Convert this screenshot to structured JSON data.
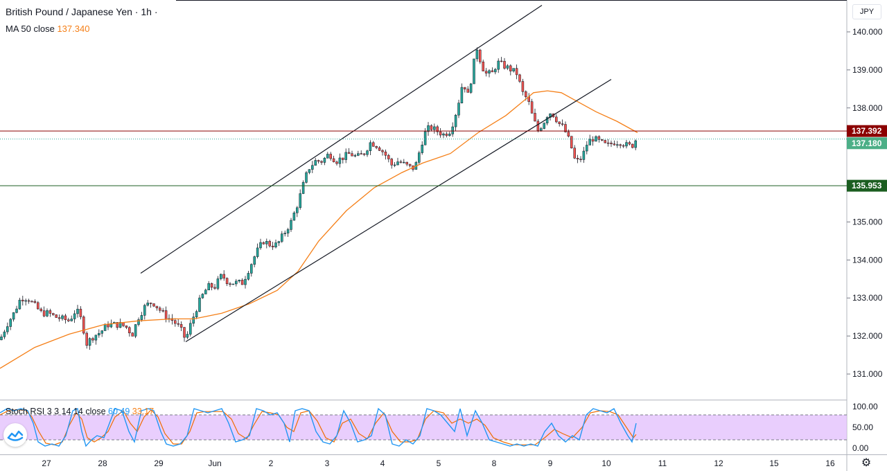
{
  "header": {
    "symbol_title": "British Pound / Japanese Yen · 1h ·",
    "ma_label": "MA 50 close",
    "ma_value": "137.340",
    "currency": "JPY"
  },
  "oscillator": {
    "label": "Stoch RSI 3 3 14 14 close",
    "k_value": "60.49",
    "d_value": "33.17"
  },
  "colors": {
    "up": "#26a69a",
    "down": "#ef5350",
    "ma": "#f57f17",
    "k": "#2196f3",
    "d": "#ef6c00",
    "resistance": "#8b0000",
    "support": "#1b5e20",
    "last_price": "#4caf87",
    "band": "#e1bdfc"
  },
  "chart_data": {
    "type": "candlestick",
    "price_axis": {
      "ticks": [
        "140.000",
        "139.000",
        "138.000",
        "137.000",
        "136.000",
        "135.000",
        "134.000",
        "133.000",
        "132.000",
        "131.000"
      ],
      "ylim": [
        130.3,
        140.7
      ]
    },
    "osc_axis": {
      "ticks": [
        "100.00",
        "50.00",
        "0.00"
      ],
      "ylim": [
        0,
        100
      ],
      "band": [
        20,
        80
      ]
    },
    "time_axis": {
      "labels": [
        "27",
        "28",
        "29",
        "Jun",
        "2",
        "3",
        "4",
        "5",
        "8",
        "9",
        "10",
        "11",
        "12",
        "15",
        "16"
      ]
    },
    "price_labels": {
      "resistance": "137.392",
      "last_price": "137.180",
      "support": "135.953"
    },
    "resistance_level": 137.392,
    "support_level": 135.953,
    "last_price": 137.18,
    "close_path": [
      [
        0,
        131.9
      ],
      [
        10,
        132.3
      ],
      [
        20,
        132.6
      ],
      [
        30,
        133.0
      ],
      [
        40,
        133.0
      ],
      [
        50,
        132.8
      ],
      [
        60,
        132.6
      ],
      [
        70,
        132.6
      ],
      [
        80,
        132.5
      ],
      [
        100,
        132.4
      ],
      [
        110,
        132.7
      ],
      [
        118,
        132.4
      ],
      [
        125,
        131.8
      ],
      [
        135,
        132.0
      ],
      [
        145,
        132.1
      ],
      [
        155,
        132.3
      ],
      [
        165,
        132.3
      ],
      [
        175,
        132.3
      ],
      [
        185,
        132.2
      ],
      [
        190,
        132.0
      ],
      [
        200,
        132.5
      ],
      [
        210,
        132.8
      ],
      [
        220,
        132.9
      ],
      [
        230,
        132.7
      ],
      [
        240,
        132.5
      ],
      [
        250,
        132.4
      ],
      [
        260,
        132.2
      ],
      [
        268,
        131.9
      ],
      [
        275,
        132.3
      ],
      [
        283,
        132.7
      ],
      [
        290,
        133.0
      ],
      [
        300,
        133.3
      ],
      [
        310,
        133.3
      ],
      [
        320,
        133.6
      ],
      [
        330,
        133.4
      ],
      [
        340,
        133.4
      ],
      [
        350,
        133.4
      ],
      [
        360,
        133.8
      ],
      [
        370,
        134.2
      ],
      [
        380,
        134.5
      ],
      [
        390,
        134.4
      ],
      [
        400,
        134.4
      ],
      [
        410,
        134.7
      ],
      [
        420,
        135.0
      ],
      [
        430,
        135.5
      ],
      [
        438,
        136.0
      ],
      [
        445,
        136.4
      ],
      [
        455,
        136.6
      ],
      [
        465,
        136.6
      ],
      [
        475,
        136.8
      ],
      [
        485,
        136.6
      ],
      [
        495,
        136.7
      ],
      [
        505,
        136.8
      ],
      [
        515,
        136.7
      ],
      [
        525,
        136.8
      ],
      [
        535,
        137.1
      ],
      [
        545,
        137.0
      ],
      [
        555,
        136.8
      ],
      [
        565,
        136.5
      ],
      [
        575,
        136.6
      ],
      [
        585,
        136.5
      ],
      [
        595,
        136.4
      ],
      [
        600,
        136.5
      ],
      [
        606,
        136.9
      ],
      [
        612,
        137.3
      ],
      [
        620,
        137.5
      ],
      [
        630,
        137.4
      ],
      [
        640,
        137.3
      ],
      [
        650,
        137.4
      ],
      [
        660,
        138.0
      ],
      [
        668,
        138.7
      ],
      [
        676,
        138.3
      ],
      [
        682,
        139.0
      ],
      [
        688,
        139.6
      ],
      [
        694,
        139.2
      ],
      [
        700,
        138.9
      ],
      [
        710,
        138.9
      ],
      [
        718,
        139.2
      ],
      [
        728,
        139.1
      ],
      [
        738,
        139.0
      ],
      [
        746,
        138.9
      ],
      [
        754,
        138.4
      ],
      [
        762,
        138.2
      ],
      [
        768,
        137.8
      ],
      [
        776,
        137.4
      ],
      [
        784,
        137.6
      ],
      [
        792,
        137.9
      ],
      [
        800,
        137.8
      ],
      [
        806,
        137.6
      ],
      [
        812,
        137.5
      ],
      [
        818,
        137.3
      ],
      [
        824,
        137.0
      ],
      [
        830,
        136.6
      ],
      [
        836,
        136.6
      ],
      [
        842,
        136.8
      ],
      [
        848,
        137.1
      ],
      [
        856,
        137.2
      ],
      [
        866,
        137.1
      ],
      [
        876,
        137.0
      ],
      [
        886,
        137.1
      ],
      [
        896,
        137.1
      ],
      [
        906,
        137.0
      ],
      [
        912,
        137.0
      ],
      [
        918,
        137.18
      ]
    ],
    "ma_path": [
      [
        0,
        131.15
      ],
      [
        50,
        131.7
      ],
      [
        100,
        132.05
      ],
      [
        150,
        132.3
      ],
      [
        200,
        132.4
      ],
      [
        250,
        132.45
      ],
      [
        280,
        132.45
      ],
      [
        320,
        132.6
      ],
      [
        360,
        132.85
      ],
      [
        400,
        133.2
      ],
      [
        430,
        133.7
      ],
      [
        460,
        134.5
      ],
      [
        500,
        135.3
      ],
      [
        540,
        135.9
      ],
      [
        580,
        136.3
      ],
      [
        610,
        136.55
      ],
      [
        650,
        136.8
      ],
      [
        690,
        137.35
      ],
      [
        730,
        137.8
      ],
      [
        770,
        138.4
      ],
      [
        790,
        138.45
      ],
      [
        810,
        138.4
      ],
      [
        830,
        138.2
      ],
      [
        860,
        137.9
      ],
      [
        890,
        137.65
      ],
      [
        920,
        137.35
      ]
    ],
    "channel_upper": [
      [
        203,
        133.65
      ],
      [
        782,
        140.7
      ]
    ],
    "channel_lower": [
      [
        268,
        131.85
      ],
      [
        882,
        138.75
      ]
    ],
    "stoch_k_path": [
      [
        0,
        85
      ],
      [
        10,
        95
      ],
      [
        20,
        90
      ],
      [
        30,
        95
      ],
      [
        40,
        90
      ],
      [
        48,
        60
      ],
      [
        55,
        15
      ],
      [
        65,
        5
      ],
      [
        75,
        10
      ],
      [
        85,
        5
      ],
      [
        95,
        30
      ],
      [
        105,
        90
      ],
      [
        112,
        95
      ],
      [
        118,
        40
      ],
      [
        124,
        5
      ],
      [
        132,
        20
      ],
      [
        140,
        30
      ],
      [
        150,
        25
      ],
      [
        158,
        60
      ],
      [
        166,
        95
      ],
      [
        176,
        90
      ],
      [
        186,
        40
      ],
      [
        194,
        15
      ],
      [
        204,
        90
      ],
      [
        214,
        95
      ],
      [
        222,
        90
      ],
      [
        232,
        40
      ],
      [
        240,
        10
      ],
      [
        250,
        5
      ],
      [
        260,
        10
      ],
      [
        270,
        30
      ],
      [
        280,
        95
      ],
      [
        290,
        90
      ],
      [
        300,
        85
      ],
      [
        310,
        90
      ],
      [
        320,
        95
      ],
      [
        330,
        60
      ],
      [
        340,
        15
      ],
      [
        350,
        20
      ],
      [
        360,
        30
      ],
      [
        370,
        95
      ],
      [
        380,
        90
      ],
      [
        390,
        80
      ],
      [
        400,
        85
      ],
      [
        410,
        60
      ],
      [
        418,
        15
      ],
      [
        426,
        90
      ],
      [
        436,
        95
      ],
      [
        446,
        90
      ],
      [
        456,
        40
      ],
      [
        466,
        15
      ],
      [
        476,
        10
      ],
      [
        486,
        30
      ],
      [
        496,
        90
      ],
      [
        506,
        60
      ],
      [
        516,
        15
      ],
      [
        526,
        20
      ],
      [
        536,
        30
      ],
      [
        546,
        95
      ],
      [
        556,
        80
      ],
      [
        566,
        10
      ],
      [
        576,
        5
      ],
      [
        586,
        20
      ],
      [
        596,
        10
      ],
      [
        606,
        30
      ],
      [
        616,
        95
      ],
      [
        626,
        90
      ],
      [
        636,
        80
      ],
      [
        646,
        60
      ],
      [
        656,
        40
      ],
      [
        664,
        95
      ],
      [
        674,
        30
      ],
      [
        686,
        90
      ],
      [
        696,
        60
      ],
      [
        706,
        20
      ],
      [
        716,
        15
      ],
      [
        726,
        10
      ],
      [
        736,
        5
      ],
      [
        746,
        10
      ],
      [
        756,
        5
      ],
      [
        766,
        10
      ],
      [
        776,
        5
      ],
      [
        786,
        40
      ],
      [
        796,
        60
      ],
      [
        806,
        30
      ],
      [
        816,
        15
      ],
      [
        826,
        30
      ],
      [
        836,
        20
      ],
      [
        846,
        80
      ],
      [
        856,
        95
      ],
      [
        866,
        90
      ],
      [
        876,
        85
      ],
      [
        886,
        95
      ],
      [
        896,
        60
      ],
      [
        906,
        30
      ],
      [
        912,
        15
      ],
      [
        918,
        60
      ]
    ],
    "stoch_d_path": [
      [
        0,
        80
      ],
      [
        12,
        90
      ],
      [
        24,
        92
      ],
      [
        36,
        92
      ],
      [
        46,
        75
      ],
      [
        56,
        40
      ],
      [
        66,
        12
      ],
      [
        78,
        8
      ],
      [
        90,
        15
      ],
      [
        100,
        55
      ],
      [
        110,
        85
      ],
      [
        118,
        70
      ],
      [
        126,
        25
      ],
      [
        136,
        15
      ],
      [
        146,
        25
      ],
      [
        156,
        40
      ],
      [
        166,
        75
      ],
      [
        178,
        90
      ],
      [
        188,
        60
      ],
      [
        198,
        40
      ],
      [
        208,
        75
      ],
      [
        218,
        92
      ],
      [
        228,
        75
      ],
      [
        238,
        35
      ],
      [
        250,
        10
      ],
      [
        262,
        10
      ],
      [
        274,
        40
      ],
      [
        284,
        85
      ],
      [
        296,
        88
      ],
      [
        310,
        88
      ],
      [
        322,
        88
      ],
      [
        334,
        70
      ],
      [
        344,
        35
      ],
      [
        356,
        22
      ],
      [
        366,
        55
      ],
      [
        378,
        88
      ],
      [
        390,
        85
      ],
      [
        402,
        80
      ],
      [
        414,
        50
      ],
      [
        424,
        40
      ],
      [
        434,
        85
      ],
      [
        446,
        90
      ],
      [
        458,
        65
      ],
      [
        470,
        25
      ],
      [
        482,
        15
      ],
      [
        494,
        60
      ],
      [
        506,
        70
      ],
      [
        518,
        35
      ],
      [
        530,
        22
      ],
      [
        542,
        60
      ],
      [
        554,
        85
      ],
      [
        566,
        40
      ],
      [
        578,
        15
      ],
      [
        590,
        15
      ],
      [
        602,
        20
      ],
      [
        614,
        70
      ],
      [
        626,
        90
      ],
      [
        640,
        85
      ],
      [
        652,
        60
      ],
      [
        664,
        70
      ],
      [
        676,
        60
      ],
      [
        688,
        70
      ],
      [
        700,
        55
      ],
      [
        712,
        25
      ],
      [
        726,
        15
      ],
      [
        740,
        8
      ],
      [
        756,
        8
      ],
      [
        772,
        8
      ],
      [
        786,
        25
      ],
      [
        800,
        45
      ],
      [
        812,
        35
      ],
      [
        826,
        25
      ],
      [
        840,
        50
      ],
      [
        852,
        85
      ],
      [
        866,
        90
      ],
      [
        880,
        88
      ],
      [
        892,
        80
      ],
      [
        904,
        50
      ],
      [
        914,
        25
      ],
      [
        918,
        33
      ]
    ]
  }
}
